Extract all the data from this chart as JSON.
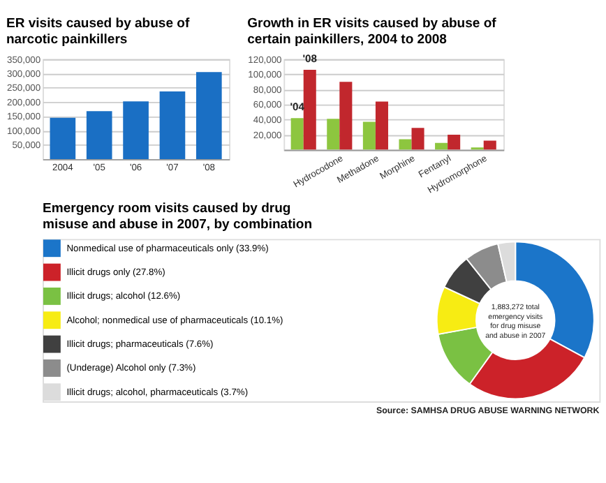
{
  "chart_data": [
    {
      "type": "bar",
      "title": "ER visits caused by abuse of narcotic painkillers",
      "categories": [
        "2004",
        "'05",
        "'06",
        "'07",
        "'08"
      ],
      "values": [
        145000,
        168000,
        202000,
        237000,
        305000
      ],
      "color": "#1a6fc4",
      "ylim": [
        0,
        350000
      ],
      "yticks": [
        {
          "value": 50000,
          "label": "50,000"
        },
        {
          "value": 100000,
          "label": "100,000"
        },
        {
          "value": 150000,
          "label": "150,000"
        },
        {
          "value": 200000,
          "label": "200,000"
        },
        {
          "value": 250000,
          "label": "250,000"
        },
        {
          "value": 300000,
          "label": "300,000"
        },
        {
          "value": 350000,
          "label": "350,000"
        }
      ],
      "grid": "y"
    },
    {
      "type": "bar",
      "title": "Growth in ER visits caused by abuse of certain painkillers, 2004 to 2008",
      "categories": [
        null,
        "Hydrocodone",
        "Methadone",
        "Morphine",
        "Fentanyl",
        "Hydromorphone"
      ],
      "series": [
        {
          "name": "'04",
          "color": "#8dc63f",
          "values": [
            42000,
            41000,
            37000,
            14000,
            9000,
            3000
          ]
        },
        {
          "name": "'08",
          "color": "#c1272d",
          "values": [
            106000,
            90000,
            64000,
            29000,
            20000,
            12000
          ]
        }
      ],
      "ylim": [
        0,
        120000
      ],
      "yticks": [
        {
          "value": 20000,
          "label": "20,000"
        },
        {
          "value": 40000,
          "label": "40,000"
        },
        {
          "value": 60000,
          "label": "60,000"
        },
        {
          "value": 80000,
          "label": "80,000"
        },
        {
          "value": 100000,
          "label": "100,000"
        },
        {
          "value": 120000,
          "label": "120,000"
        }
      ],
      "grid": "y"
    },
    {
      "type": "donut",
      "title": "Emergency room visits caused by drug misuse and abuse in 2007, by combination",
      "categories": [
        "Nonmedical use of pharmaceuticals only (33.9%)",
        "Illicit drugs only (27.8%)",
        "Illicit drugs; alcohol (12.6%)",
        "Alcohol; nonmedical use of pharmaceuticals (10.1%)",
        "Illicit drugs; pharmaceuticals (7.6%)",
        "(Underage) Alcohol only (7.3%)",
        "Illicit drugs; alcohol, pharmaceuticals (3.7%)"
      ],
      "values": [
        33.9,
        27.8,
        12.6,
        10.1,
        7.6,
        7.3,
        3.7
      ],
      "colors": [
        "#1b75c9",
        "#cc2229",
        "#7ac143",
        "#f7ec13",
        "#404040",
        "#8c8c8c",
        "#dcdcdc"
      ],
      "legend": "left",
      "annotations": [
        "1,883,272 total emergency visits for drug misuse and abuse in 2007",
        "Source: SAMHSA DRUG ABUSE WARNING NETWORK"
      ]
    }
  ]
}
